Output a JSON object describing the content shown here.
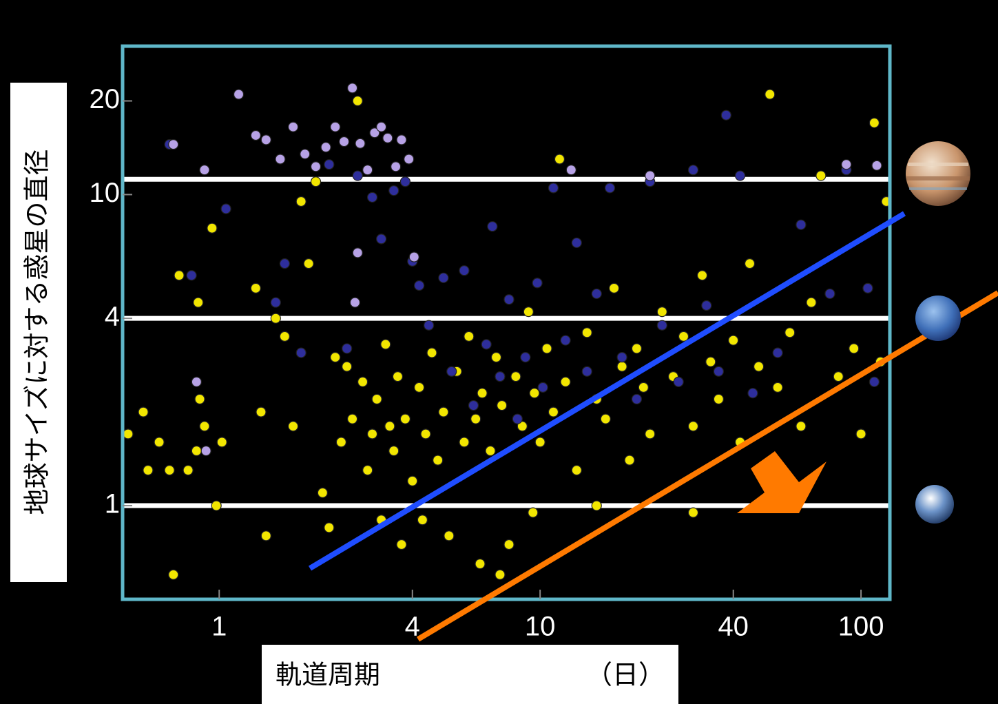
{
  "chart_data": {
    "type": "scatter",
    "xlabel": "軌道周期",
    "xlabel_unit": "（日）",
    "ylabel": "地球サイズに対する惑星の直径",
    "log_x": true,
    "log_y": true,
    "xlim": [
      0.5,
      123
    ],
    "ylim": [
      0.5,
      30
    ],
    "xticks": [
      1,
      4,
      10,
      40,
      100
    ],
    "yticks": [
      1,
      4,
      10,
      20
    ],
    "reference_lines": [
      1,
      4,
      11.2
    ],
    "frame_color": "#5fb7c9",
    "series": [
      {
        "color": "#f2e600",
        "x": [
          0.52,
          0.58,
          0.6,
          0.65,
          0.7,
          0.72,
          0.75,
          0.8,
          0.85,
          0.87,
          0.9,
          0.95,
          0.98,
          1.02,
          0.86,
          1.3,
          1.35,
          1.4,
          1.5,
          1.6,
          1.7,
          1.8,
          1.9,
          2.0,
          2.1,
          2.2,
          2.3,
          2.4,
          2.5,
          2.6,
          2.7,
          2.8,
          2.9,
          3.0,
          3.1,
          3.2,
          3.3,
          3.4,
          3.5,
          3.6,
          3.8,
          4.0,
          4.2,
          4.4,
          4.6,
          4.8,
          5.0,
          5.2,
          5.5,
          5.8,
          6.0,
          6.3,
          6.6,
          7.0,
          7.3,
          7.6,
          8.0,
          8.4,
          8.8,
          9.2,
          9.6,
          10,
          10.5,
          11,
          11.5,
          12,
          13,
          14,
          15,
          16,
          17,
          18,
          19,
          20,
          21,
          22,
          24,
          26,
          28,
          30,
          32,
          34,
          36,
          40,
          42,
          45,
          48,
          52,
          55,
          60,
          65,
          70,
          75,
          85,
          95,
          100,
          110,
          115,
          120,
          3.7,
          4.3,
          9.5,
          15,
          30,
          6.5,
          7.5
        ],
        "values": [
          1.7,
          2.0,
          1.3,
          1.6,
          1.3,
          0.6,
          5.5,
          1.3,
          1.5,
          2.2,
          1.8,
          7.8,
          1.0,
          1.6,
          4.5,
          5.0,
          2.0,
          0.8,
          4.0,
          3.5,
          1.8,
          9.5,
          6.0,
          11,
          1.1,
          0.85,
          3.0,
          1.6,
          2.8,
          1.9,
          20,
          2.5,
          1.3,
          1.7,
          2.2,
          0.9,
          3.3,
          1.8,
          1.5,
          2.6,
          1.9,
          1.2,
          2.4,
          1.7,
          3.1,
          1.4,
          2.0,
          0.8,
          2.7,
          1.6,
          3.5,
          1.9,
          2.3,
          1.5,
          3.0,
          2.1,
          0.75,
          2.6,
          1.8,
          4.2,
          2.3,
          1.6,
          3.2,
          2.0,
          13,
          2.5,
          1.3,
          3.6,
          2.2,
          1.9,
          5.0,
          2.8,
          1.4,
          3.2,
          2.4,
          1.7,
          4.2,
          2.6,
          3.5,
          1.8,
          5.5,
          2.9,
          2.2,
          3.4,
          1.6,
          6.0,
          2.8,
          21,
          2.4,
          3.6,
          1.8,
          4.5,
          11.5,
          2.6,
          3.2,
          1.7,
          17,
          2.9,
          9.5,
          0.75,
          0.9,
          0.95,
          1.0,
          0.95,
          0.65,
          0.6
        ]
      },
      {
        "color": "#2e2e9c",
        "x": [
          0.7,
          0.82,
          1.05,
          1.5,
          1.6,
          1.8,
          2.2,
          2.5,
          2.7,
          3.0,
          3.2,
          3.5,
          3.8,
          4.0,
          4.2,
          4.5,
          5.0,
          5.3,
          5.8,
          6.2,
          6.8,
          7.1,
          7.5,
          8.0,
          8.5,
          9.0,
          9.8,
          10.2,
          11,
          12,
          13,
          14,
          15,
          16.5,
          18,
          20,
          22,
          24,
          27,
          30,
          33,
          36,
          38,
          42,
          46,
          55,
          65,
          80,
          90,
          105,
          110
        ],
        "values": [
          14.5,
          5.5,
          9,
          4.5,
          6,
          3.1,
          12.5,
          3.2,
          11.5,
          9.8,
          7.2,
          10.3,
          11,
          6.1,
          5.1,
          3.8,
          5.4,
          2.7,
          5.7,
          2.1,
          3.3,
          7.9,
          2.6,
          4.6,
          1.9,
          3.0,
          5.2,
          2.4,
          10.5,
          3.4,
          7.0,
          2.7,
          4.8,
          10.5,
          3.0,
          2.2,
          11,
          3.8,
          2.5,
          12,
          4.4,
          2.7,
          18,
          11.5,
          2.3,
          3.1,
          8,
          4.8,
          12,
          5.0,
          2.5
        ]
      },
      {
        "color": "#b7a2e6",
        "x": [
          0.72,
          0.9,
          1.15,
          1.3,
          1.4,
          1.55,
          1.7,
          1.85,
          2.0,
          2.15,
          2.3,
          2.45,
          2.6,
          2.75,
          2.9,
          3.05,
          3.2,
          3.35,
          3.55,
          3.7,
          3.9,
          2.7,
          2.65,
          4.05,
          0.91,
          0.85,
          12.5,
          22,
          90,
          112
        ],
        "values": [
          14.5,
          12,
          21,
          15.5,
          15,
          13,
          16.5,
          13.5,
          12.3,
          14.2,
          16.5,
          14.8,
          22,
          14.6,
          12,
          15.8,
          16.5,
          15.2,
          12.3,
          15,
          13,
          6.5,
          4.5,
          6.3,
          1.5,
          2.5,
          12,
          11.5,
          12.5,
          12.4
        ]
      }
    ]
  }
}
